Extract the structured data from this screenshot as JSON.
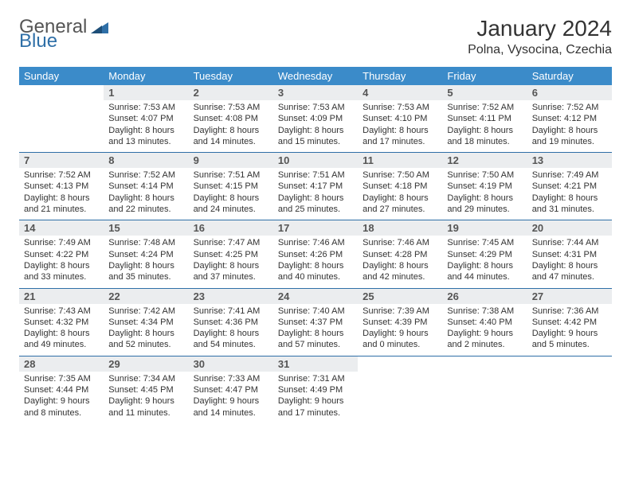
{
  "logo": {
    "text1": "General",
    "text2": "Blue"
  },
  "title": "January 2024",
  "location": "Polna, Vysocina, Czechia",
  "colors": {
    "header_bg": "#3b8bc9",
    "header_text": "#ffffff",
    "daynum_bg": "#ebedef",
    "border": "#2f6fa7",
    "logo_blue": "#2f6fa7"
  },
  "weekdays": [
    "Sunday",
    "Monday",
    "Tuesday",
    "Wednesday",
    "Thursday",
    "Friday",
    "Saturday"
  ],
  "weeks": [
    [
      {
        "n": "",
        "sr": "",
        "ss": "",
        "dl": ""
      },
      {
        "n": "1",
        "sr": "Sunrise: 7:53 AM",
        "ss": "Sunset: 4:07 PM",
        "dl": "Daylight: 8 hours and 13 minutes."
      },
      {
        "n": "2",
        "sr": "Sunrise: 7:53 AM",
        "ss": "Sunset: 4:08 PM",
        "dl": "Daylight: 8 hours and 14 minutes."
      },
      {
        "n": "3",
        "sr": "Sunrise: 7:53 AM",
        "ss": "Sunset: 4:09 PM",
        "dl": "Daylight: 8 hours and 15 minutes."
      },
      {
        "n": "4",
        "sr": "Sunrise: 7:53 AM",
        "ss": "Sunset: 4:10 PM",
        "dl": "Daylight: 8 hours and 17 minutes."
      },
      {
        "n": "5",
        "sr": "Sunrise: 7:52 AM",
        "ss": "Sunset: 4:11 PM",
        "dl": "Daylight: 8 hours and 18 minutes."
      },
      {
        "n": "6",
        "sr": "Sunrise: 7:52 AM",
        "ss": "Sunset: 4:12 PM",
        "dl": "Daylight: 8 hours and 19 minutes."
      }
    ],
    [
      {
        "n": "7",
        "sr": "Sunrise: 7:52 AM",
        "ss": "Sunset: 4:13 PM",
        "dl": "Daylight: 8 hours and 21 minutes."
      },
      {
        "n": "8",
        "sr": "Sunrise: 7:52 AM",
        "ss": "Sunset: 4:14 PM",
        "dl": "Daylight: 8 hours and 22 minutes."
      },
      {
        "n": "9",
        "sr": "Sunrise: 7:51 AM",
        "ss": "Sunset: 4:15 PM",
        "dl": "Daylight: 8 hours and 24 minutes."
      },
      {
        "n": "10",
        "sr": "Sunrise: 7:51 AM",
        "ss": "Sunset: 4:17 PM",
        "dl": "Daylight: 8 hours and 25 minutes."
      },
      {
        "n": "11",
        "sr": "Sunrise: 7:50 AM",
        "ss": "Sunset: 4:18 PM",
        "dl": "Daylight: 8 hours and 27 minutes."
      },
      {
        "n": "12",
        "sr": "Sunrise: 7:50 AM",
        "ss": "Sunset: 4:19 PM",
        "dl": "Daylight: 8 hours and 29 minutes."
      },
      {
        "n": "13",
        "sr": "Sunrise: 7:49 AM",
        "ss": "Sunset: 4:21 PM",
        "dl": "Daylight: 8 hours and 31 minutes."
      }
    ],
    [
      {
        "n": "14",
        "sr": "Sunrise: 7:49 AM",
        "ss": "Sunset: 4:22 PM",
        "dl": "Daylight: 8 hours and 33 minutes."
      },
      {
        "n": "15",
        "sr": "Sunrise: 7:48 AM",
        "ss": "Sunset: 4:24 PM",
        "dl": "Daylight: 8 hours and 35 minutes."
      },
      {
        "n": "16",
        "sr": "Sunrise: 7:47 AM",
        "ss": "Sunset: 4:25 PM",
        "dl": "Daylight: 8 hours and 37 minutes."
      },
      {
        "n": "17",
        "sr": "Sunrise: 7:46 AM",
        "ss": "Sunset: 4:26 PM",
        "dl": "Daylight: 8 hours and 40 minutes."
      },
      {
        "n": "18",
        "sr": "Sunrise: 7:46 AM",
        "ss": "Sunset: 4:28 PM",
        "dl": "Daylight: 8 hours and 42 minutes."
      },
      {
        "n": "19",
        "sr": "Sunrise: 7:45 AM",
        "ss": "Sunset: 4:29 PM",
        "dl": "Daylight: 8 hours and 44 minutes."
      },
      {
        "n": "20",
        "sr": "Sunrise: 7:44 AM",
        "ss": "Sunset: 4:31 PM",
        "dl": "Daylight: 8 hours and 47 minutes."
      }
    ],
    [
      {
        "n": "21",
        "sr": "Sunrise: 7:43 AM",
        "ss": "Sunset: 4:32 PM",
        "dl": "Daylight: 8 hours and 49 minutes."
      },
      {
        "n": "22",
        "sr": "Sunrise: 7:42 AM",
        "ss": "Sunset: 4:34 PM",
        "dl": "Daylight: 8 hours and 52 minutes."
      },
      {
        "n": "23",
        "sr": "Sunrise: 7:41 AM",
        "ss": "Sunset: 4:36 PM",
        "dl": "Daylight: 8 hours and 54 minutes."
      },
      {
        "n": "24",
        "sr": "Sunrise: 7:40 AM",
        "ss": "Sunset: 4:37 PM",
        "dl": "Daylight: 8 hours and 57 minutes."
      },
      {
        "n": "25",
        "sr": "Sunrise: 7:39 AM",
        "ss": "Sunset: 4:39 PM",
        "dl": "Daylight: 9 hours and 0 minutes."
      },
      {
        "n": "26",
        "sr": "Sunrise: 7:38 AM",
        "ss": "Sunset: 4:40 PM",
        "dl": "Daylight: 9 hours and 2 minutes."
      },
      {
        "n": "27",
        "sr": "Sunrise: 7:36 AM",
        "ss": "Sunset: 4:42 PM",
        "dl": "Daylight: 9 hours and 5 minutes."
      }
    ],
    [
      {
        "n": "28",
        "sr": "Sunrise: 7:35 AM",
        "ss": "Sunset: 4:44 PM",
        "dl": "Daylight: 9 hours and 8 minutes."
      },
      {
        "n": "29",
        "sr": "Sunrise: 7:34 AM",
        "ss": "Sunset: 4:45 PM",
        "dl": "Daylight: 9 hours and 11 minutes."
      },
      {
        "n": "30",
        "sr": "Sunrise: 7:33 AM",
        "ss": "Sunset: 4:47 PM",
        "dl": "Daylight: 9 hours and 14 minutes."
      },
      {
        "n": "31",
        "sr": "Sunrise: 7:31 AM",
        "ss": "Sunset: 4:49 PM",
        "dl": "Daylight: 9 hours and 17 minutes."
      },
      {
        "n": "",
        "sr": "",
        "ss": "",
        "dl": ""
      },
      {
        "n": "",
        "sr": "",
        "ss": "",
        "dl": ""
      },
      {
        "n": "",
        "sr": "",
        "ss": "",
        "dl": ""
      }
    ]
  ]
}
